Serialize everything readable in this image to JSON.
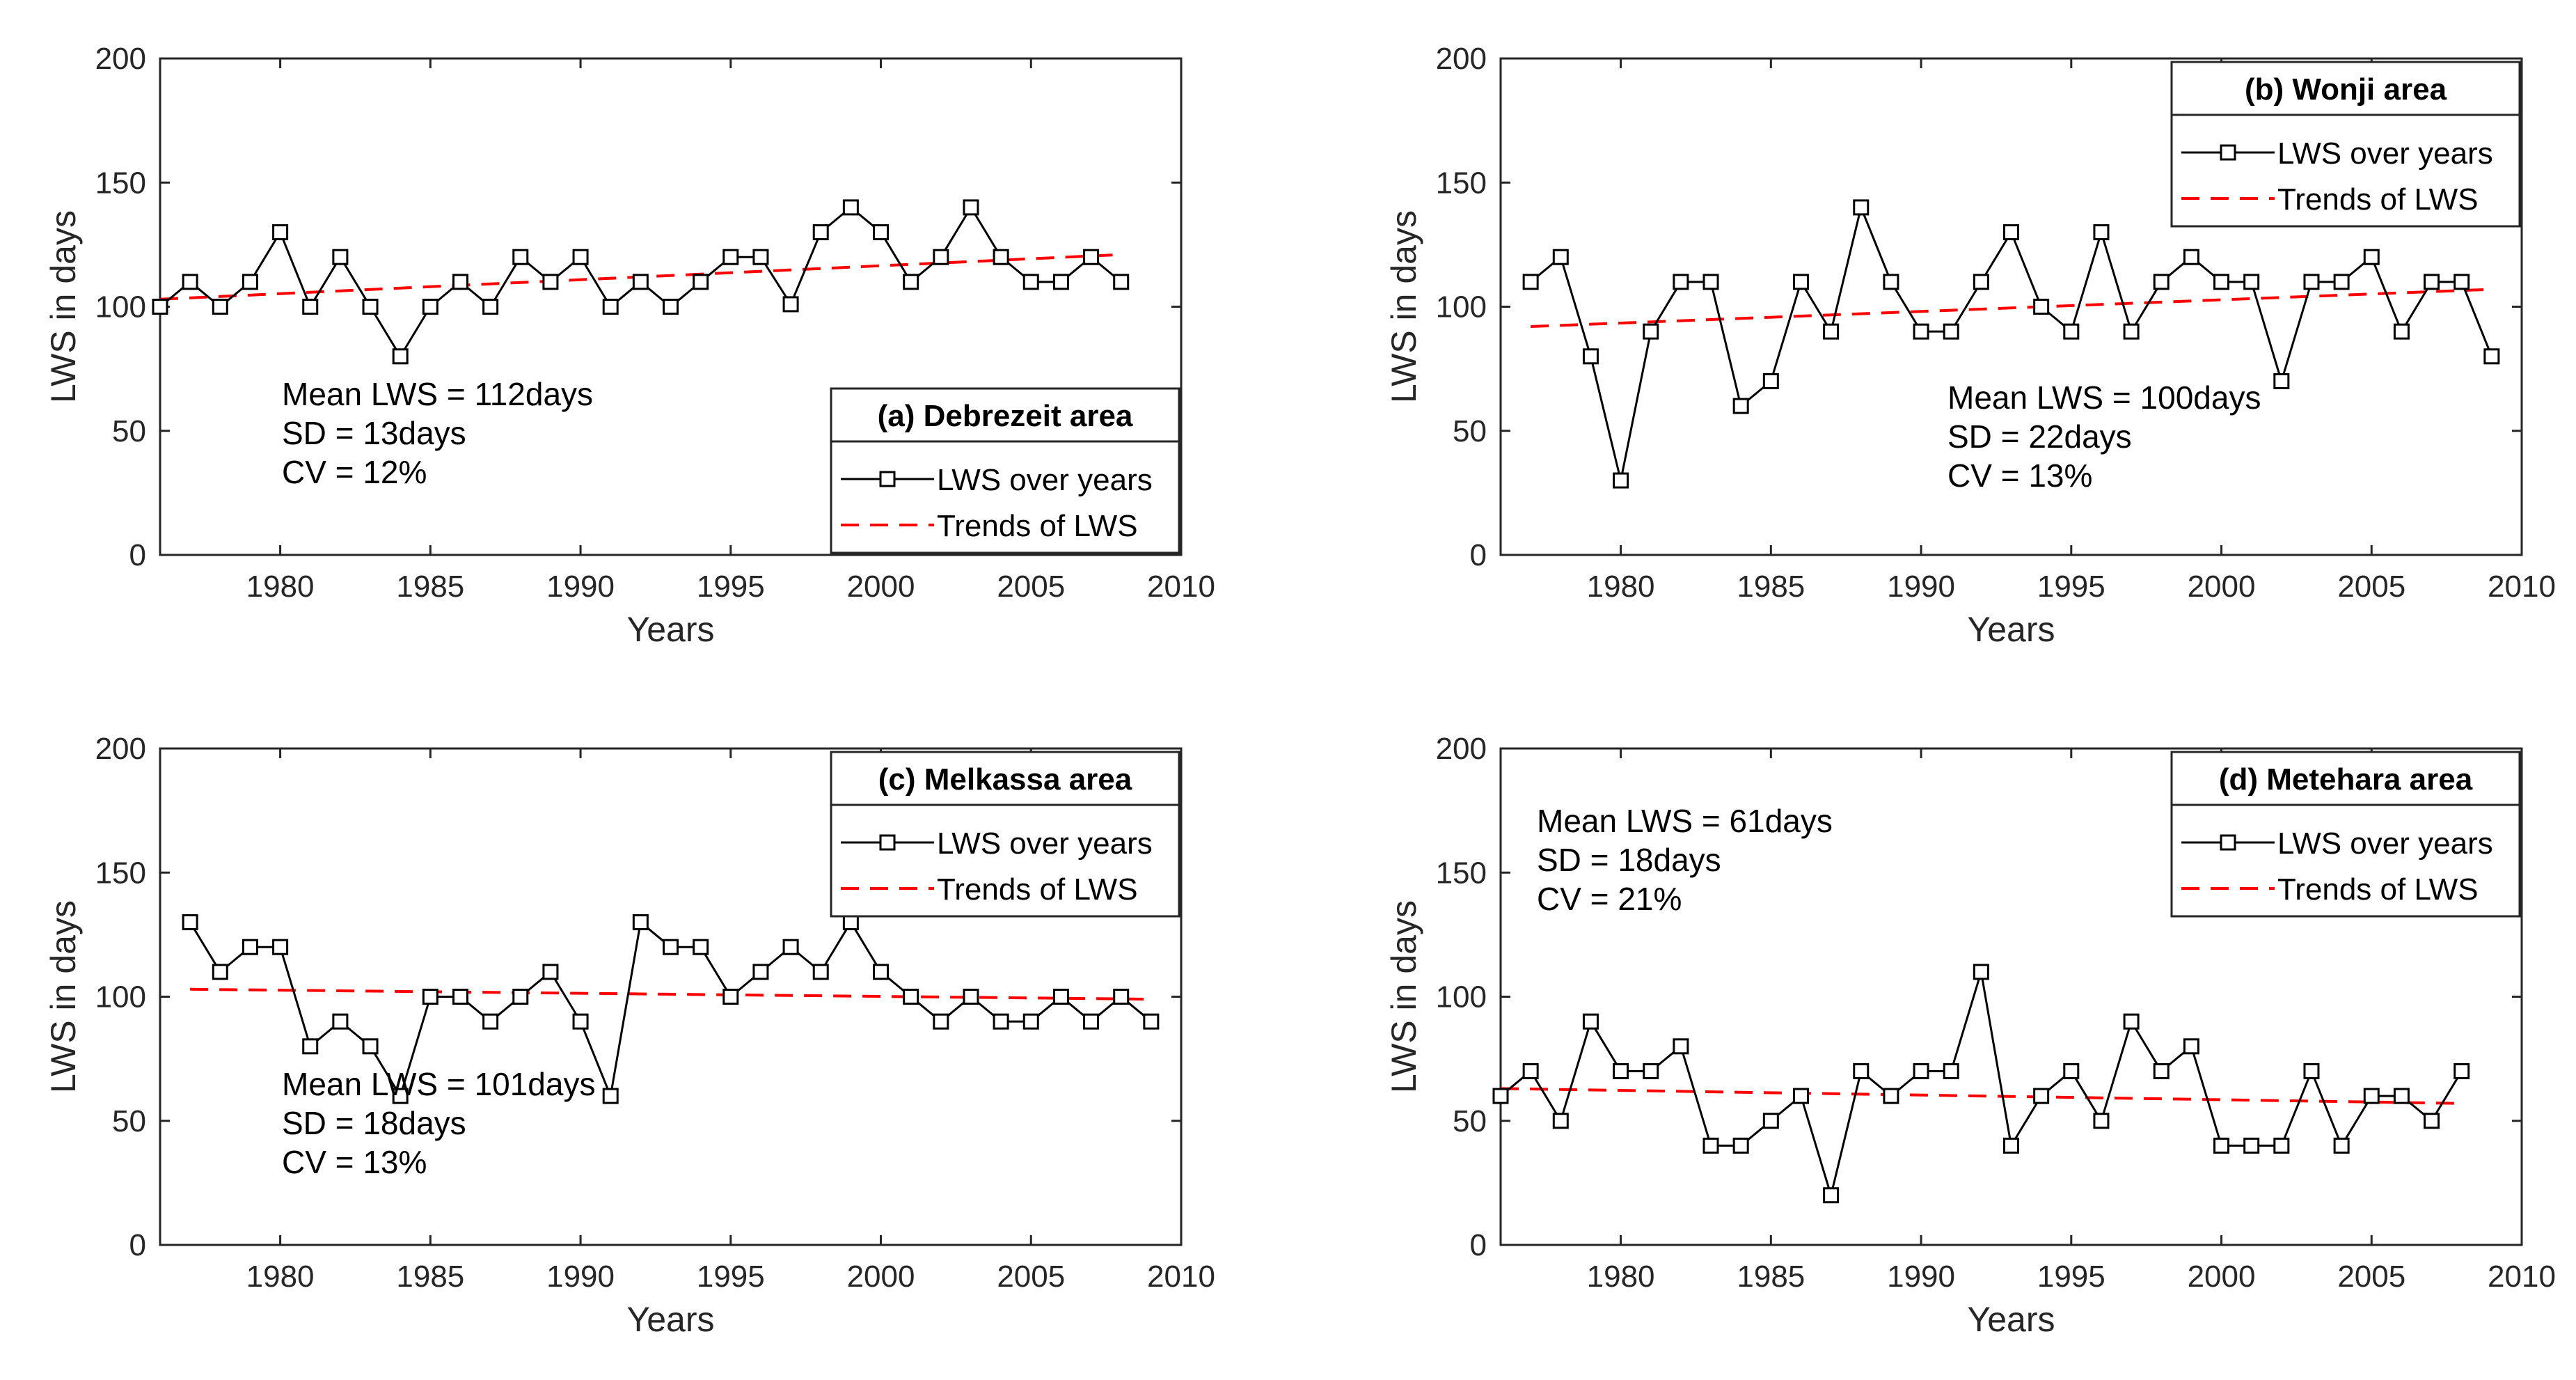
{
  "chart_data": [
    {
      "type": "line",
      "panel": "a",
      "legend_title": "(a) Debrezeit area",
      "xlabel": "Years",
      "ylabel": "LWS in days",
      "xlim": [
        1976,
        2010
      ],
      "ylim": [
        0,
        200
      ],
      "xticks": [
        1980,
        1985,
        1990,
        1995,
        2000,
        2005,
        2010
      ],
      "yticks": [
        0,
        50,
        100,
        150,
        200
      ],
      "legend_placement": "bottom-right",
      "stats": [
        "Mean LWS = 112days",
        "SD = 13days",
        "CV = 12%"
      ],
      "stats_placement": "bottom-left",
      "series": [
        {
          "name": "LWS over years",
          "x": [
            1976,
            1977,
            1978,
            1979,
            1980,
            1981,
            1982,
            1983,
            1984,
            1985,
            1986,
            1987,
            1988,
            1989,
            1990,
            1991,
            1992,
            1993,
            1994,
            1995,
            1996,
            1997,
            1998,
            1999,
            2000,
            2001,
            2002,
            2003,
            2004,
            2005,
            2006,
            2007,
            2008
          ],
          "values": [
            100,
            110,
            100,
            110,
            130,
            100,
            120,
            100,
            80,
            100,
            110,
            100,
            120,
            110,
            120,
            100,
            110,
            100,
            110,
            120,
            120,
            101,
            130,
            140,
            130,
            110,
            120,
            140,
            120,
            110,
            110,
            120,
            110
          ]
        },
        {
          "name": "Trends of LWS",
          "x": [
            1976,
            2008
          ],
          "values": [
            103,
            121
          ]
        }
      ]
    },
    {
      "type": "line",
      "panel": "b",
      "legend_title": "(b) Wonji area",
      "xlabel": "Years",
      "ylabel": "LWS in days",
      "xlim": [
        1976,
        2010
      ],
      "ylim": [
        0,
        200
      ],
      "xticks": [
        1980,
        1985,
        1990,
        1995,
        2000,
        2005,
        2010
      ],
      "yticks": [
        0,
        50,
        100,
        150,
        200
      ],
      "legend_placement": "top-right",
      "stats": [
        "Mean LWS = 100days",
        "SD = 22days",
        "CV = 13%"
      ],
      "stats_placement": "bottom-center",
      "series": [
        {
          "name": "LWS over years",
          "x": [
            1977,
            1978,
            1979,
            1980,
            1981,
            1982,
            1983,
            1984,
            1985,
            1986,
            1987,
            1988,
            1989,
            1990,
            1991,
            1992,
            1993,
            1994,
            1995,
            1996,
            1997,
            1998,
            1999,
            2000,
            2001,
            2002,
            2003,
            2004,
            2005,
            2006,
            2007,
            2008,
            2009
          ],
          "values": [
            110,
            120,
            80,
            30,
            90,
            110,
            110,
            60,
            70,
            110,
            90,
            140,
            110,
            90,
            90,
            110,
            130,
            100,
            90,
            130,
            90,
            110,
            120,
            110,
            110,
            70,
            110,
            110,
            120,
            90,
            110,
            110,
            80
          ]
        },
        {
          "name": "Trends of LWS",
          "x": [
            1977,
            2009
          ],
          "values": [
            92,
            107
          ]
        }
      ]
    },
    {
      "type": "line",
      "panel": "c",
      "legend_title": "(c) Melkassa area",
      "xlabel": "Years",
      "ylabel": "LWS in days",
      "xlim": [
        1976,
        2010
      ],
      "ylim": [
        0,
        200
      ],
      "xticks": [
        1980,
        1985,
        1990,
        1995,
        2000,
        2005,
        2010
      ],
      "yticks": [
        0,
        50,
        100,
        150,
        200
      ],
      "legend_placement": "top-right",
      "stats": [
        "Mean LWS = 101days",
        "SD = 18days",
        "CV = 13%"
      ],
      "stats_placement": "bottom-left",
      "series": [
        {
          "name": "LWS over years",
          "x": [
            1977,
            1978,
            1979,
            1980,
            1981,
            1982,
            1983,
            1984,
            1985,
            1986,
            1987,
            1988,
            1989,
            1990,
            1991,
            1992,
            1993,
            1994,
            1995,
            1996,
            1997,
            1998,
            1999,
            2000,
            2001,
            2002,
            2003,
            2004,
            2005,
            2006,
            2007,
            2008,
            2009
          ],
          "values": [
            130,
            110,
            120,
            120,
            80,
            90,
            80,
            60,
            100,
            100,
            90,
            100,
            110,
            90,
            60,
            130,
            120,
            120,
            100,
            110,
            120,
            110,
            130,
            110,
            100,
            90,
            100,
            90,
            90,
            100,
            90,
            100,
            90
          ]
        },
        {
          "name": "Trends of LWS",
          "x": [
            1977,
            2009
          ],
          "values": [
            103,
            99
          ]
        }
      ]
    },
    {
      "type": "line",
      "panel": "d",
      "legend_title": "(d) Metehara area",
      "xlabel": "Years",
      "ylabel": "LWS in days",
      "xlim": [
        1976,
        2010
      ],
      "ylim": [
        0,
        200
      ],
      "xticks": [
        1980,
        1985,
        1990,
        1995,
        2000,
        2005,
        2010
      ],
      "yticks": [
        0,
        50,
        100,
        150,
        200
      ],
      "legend_placement": "top-right",
      "stats": [
        "Mean LWS = 61days",
        "SD = 18days",
        "CV = 21%"
      ],
      "stats_placement": "top-left",
      "series": [
        {
          "name": "LWS over years",
          "x": [
            1976,
            1977,
            1978,
            1979,
            1980,
            1981,
            1982,
            1983,
            1984,
            1985,
            1986,
            1987,
            1988,
            1989,
            1990,
            1991,
            1992,
            1993,
            1994,
            1995,
            1996,
            1997,
            1998,
            1999,
            2000,
            2001,
            2002,
            2003,
            2004,
            2005,
            2006,
            2007,
            2008
          ],
          "values": [
            60,
            70,
            50,
            90,
            70,
            70,
            80,
            40,
            40,
            50,
            60,
            20,
            70,
            60,
            70,
            70,
            110,
            40,
            60,
            70,
            50,
            90,
            70,
            80,
            40,
            40,
            40,
            70,
            40,
            60,
            60,
            50,
            70
          ]
        },
        {
          "name": "Trends of LWS",
          "x": [
            1976,
            2008
          ],
          "values": [
            63,
            57
          ]
        }
      ]
    }
  ],
  "style": {
    "line_color": "#000000",
    "trend_color": "#ff0000",
    "axis_color": "#262626",
    "background": "#ffffff"
  }
}
